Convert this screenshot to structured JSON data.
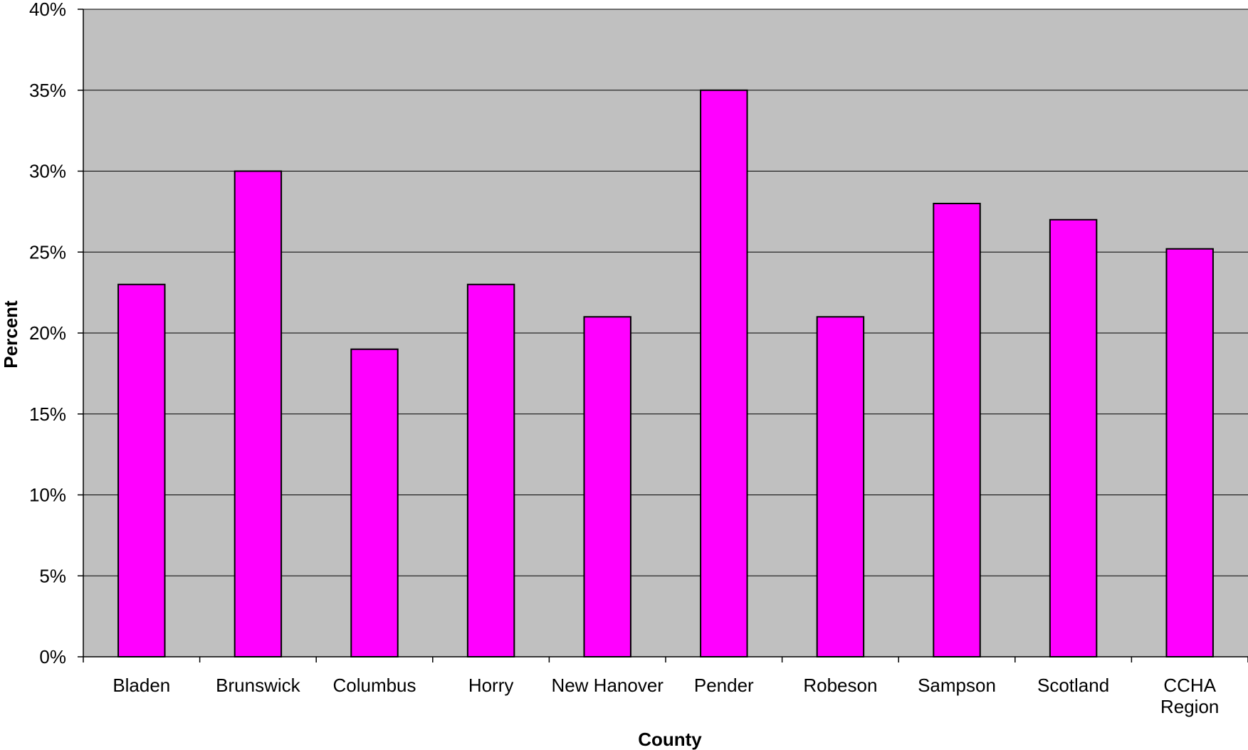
{
  "chart_data": {
    "type": "bar",
    "title": "",
    "xlabel": "County",
    "ylabel": "Percent",
    "categories": [
      "Bladen",
      "Brunswick",
      "Columbus",
      "Horry",
      "New Hanover",
      "Pender",
      "Robeson",
      "Sampson",
      "Scotland",
      "CCHA Region"
    ],
    "category_lines": [
      [
        "Bladen"
      ],
      [
        "Brunswick"
      ],
      [
        "Columbus"
      ],
      [
        "Horry"
      ],
      [
        "New Hanover"
      ],
      [
        "Pender"
      ],
      [
        "Robeson"
      ],
      [
        "Sampson"
      ],
      [
        "Scotland"
      ],
      [
        "CCHA",
        "Region"
      ]
    ],
    "values": [
      23,
      30,
      19,
      23,
      21,
      35,
      21,
      28,
      27,
      25.2
    ],
    "ylim": [
      0,
      40
    ],
    "yticks": [
      0,
      5,
      10,
      15,
      20,
      25,
      30,
      35,
      40
    ],
    "ytick_labels": [
      "0%",
      "5%",
      "10%",
      "15%",
      "20%",
      "25%",
      "30%",
      "35%",
      "40%"
    ],
    "grid": true,
    "legend": "none",
    "colors": {
      "bar_fill": "#ff00ff",
      "bar_stroke": "#000000",
      "plot_background": "#c0c0c0",
      "gridline": "#000000"
    }
  }
}
